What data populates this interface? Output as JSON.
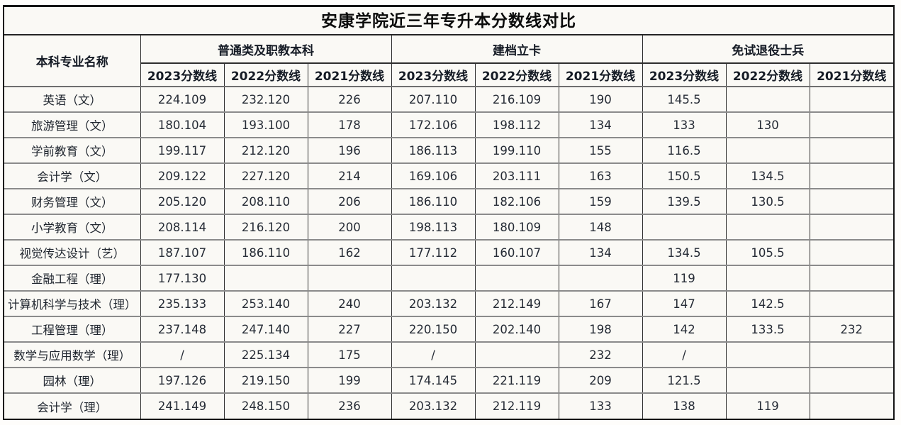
{
  "page": {
    "title": "安康学院近三年专升本分数线对比"
  },
  "table": {
    "major_column_header": "本科专业名称",
    "groups": [
      {
        "label": "普通类及职教本科",
        "years": [
          "2023分数线",
          "2022分数线",
          "2021分数线"
        ]
      },
      {
        "label": "建档立卡",
        "years": [
          "2023分数线",
          "2022分数线",
          "2021分数线"
        ]
      },
      {
        "label": "免试退役士兵",
        "years": [
          "2023分数线",
          "2022分数线",
          "2021分数线"
        ]
      }
    ]
  },
  "colors": {
    "frame_border": "#141414",
    "row_separator": "#8b8b8b",
    "column_separator": "#2f2f2f",
    "background": "#faf9f5",
    "header_text": "#151b25",
    "data_text": "#252b35"
  },
  "chart_data": {
    "type": "table",
    "title": "安康学院近三年专升本分数线对比",
    "column_groups": [
      "普通类及职教本科",
      "建档立卡",
      "免试退役士兵"
    ],
    "columns": [
      "本科专业名称",
      "普通类及职教本科 2023分数线",
      "普通类及职教本科 2022分数线",
      "普通类及职教本科 2021分数线",
      "建档立卡 2023分数线",
      "建档立卡 2022分数线",
      "建档立卡 2021分数线",
      "免试退役士兵 2023分数线",
      "免试退役士兵 2022分数线",
      "免试退役士兵 2021分数线"
    ],
    "rows": [
      [
        "英语（文）",
        "224.109",
        "232.120",
        "226",
        "207.110",
        "216.109",
        "190",
        "145.5",
        "",
        ""
      ],
      [
        "旅游管理（文）",
        "180.104",
        "193.100",
        "178",
        "172.106",
        "198.112",
        "134",
        "133",
        "130",
        ""
      ],
      [
        "学前教育（文）",
        "199.117",
        "212.120",
        "196",
        "186.113",
        "199.110",
        "155",
        "116.5",
        "",
        ""
      ],
      [
        "会计学（文）",
        "209.122",
        "227.120",
        "214",
        "169.106",
        "203.111",
        "163",
        "150.5",
        "134.5",
        ""
      ],
      [
        "财务管理（文）",
        "205.120",
        "208.110",
        "206",
        "186.110",
        "182.106",
        "159",
        "139.5",
        "130.5",
        ""
      ],
      [
        "小学教育（文）",
        "208.114",
        "216.120",
        "200",
        "198.113",
        "180.109",
        "148",
        "",
        "",
        ""
      ],
      [
        "视觉传达设计（艺）",
        "187.107",
        "186.110",
        "162",
        "177.112",
        "160.107",
        "134",
        "134.5",
        "105.5",
        ""
      ],
      [
        "金融工程（理）",
        "177.130",
        "",
        "",
        "",
        "",
        "",
        "119",
        "",
        ""
      ],
      [
        "计算机科学与技术（理）",
        "235.133",
        "253.140",
        "240",
        "203.132",
        "212.149",
        "167",
        "147",
        "142.5",
        ""
      ],
      [
        "工程管理（理）",
        "237.148",
        "247.140",
        "227",
        "220.150",
        "202.140",
        "198",
        "142",
        "133.5",
        "232"
      ],
      [
        "数学与应用数学（理）",
        "/",
        "225.134",
        "175",
        "/",
        "",
        "232",
        "/",
        "",
        ""
      ],
      [
        "园林（理）",
        "197.126",
        "219.150",
        "199",
        "174.145",
        "221.119",
        "209",
        "121.5",
        "",
        ""
      ],
      [
        "会计学（理）",
        "241.149",
        "248.150",
        "236",
        "203.132",
        "212.119",
        "133",
        "138",
        "119",
        ""
      ]
    ]
  }
}
